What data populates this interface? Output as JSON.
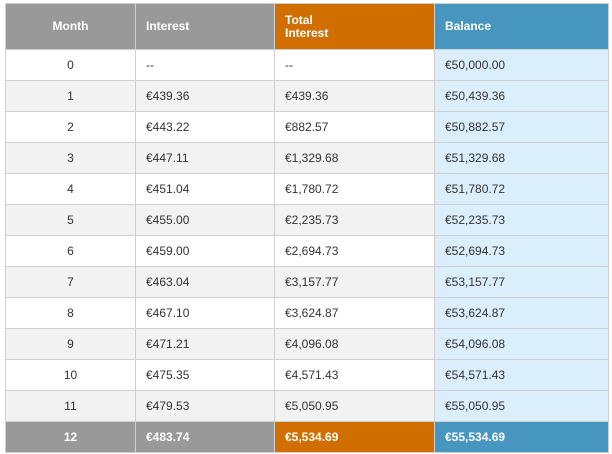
{
  "table": {
    "headers": {
      "month": "Month",
      "interest": "Interest",
      "total_interest": "Total\nInterest",
      "balance": "Balance"
    },
    "rows": [
      {
        "month": "0",
        "interest": "--",
        "total_interest": "--",
        "balance": "€50,000.00"
      },
      {
        "month": "1",
        "interest": "€439.36",
        "total_interest": "€439.36",
        "balance": "€50,439.36"
      },
      {
        "month": "2",
        "interest": "€443.22",
        "total_interest": "€882.57",
        "balance": "€50,882.57"
      },
      {
        "month": "3",
        "interest": "€447.11",
        "total_interest": "€1,329.68",
        "balance": "€51,329.68"
      },
      {
        "month": "4",
        "interest": "€451.04",
        "total_interest": "€1,780.72",
        "balance": "€51,780.72"
      },
      {
        "month": "5",
        "interest": "€455.00",
        "total_interest": "€2,235.73",
        "balance": "€52,235.73"
      },
      {
        "month": "6",
        "interest": "€459.00",
        "total_interest": "€2,694.73",
        "balance": "€52,694.73"
      },
      {
        "month": "7",
        "interest": "€463.04",
        "total_interest": "€3,157.77",
        "balance": "€53,157.77"
      },
      {
        "month": "8",
        "interest": "€467.10",
        "total_interest": "€3,624.87",
        "balance": "€53,624.87"
      },
      {
        "month": "9",
        "interest": "€471.21",
        "total_interest": "€4,096.08",
        "balance": "€54,096.08"
      },
      {
        "month": "10",
        "interest": "€475.35",
        "total_interest": "€4,571.43",
        "balance": "€54,571.43"
      },
      {
        "month": "11",
        "interest": "€479.53",
        "total_interest": "€5,050.95",
        "balance": "€55,050.95"
      }
    ],
    "final_row": {
      "month": "12",
      "interest": "€483.74",
      "total_interest": "€5,534.69",
      "balance": "€55,534.69"
    }
  },
  "colors": {
    "header_gray": "#999999",
    "header_orange": "#d06f00",
    "header_blue": "#4796c0",
    "balance_cell_bg": "#dbeefb",
    "alt_row_bg": "#f2f2f2"
  }
}
